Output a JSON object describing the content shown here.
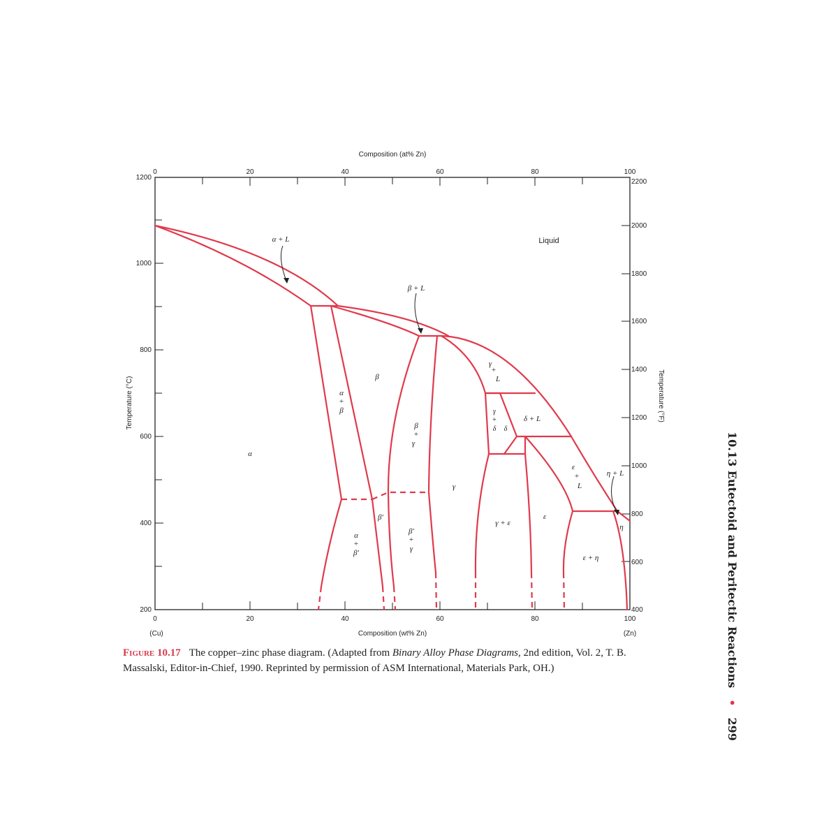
{
  "figure": {
    "label_prefix": "Figure",
    "label_number": "10.17",
    "caption_parts": {
      "pre": "The copper–zinc phase diagram. (Adapted from ",
      "source_italic": "Binary Alloy Phase Diagrams,",
      "post": " 2nd edition, Vol. 2, T. B. Massalski, Editor-in-Chief, 1990. Reprinted by permission of ASM International, Materials Park, OH.)"
    }
  },
  "running_head": {
    "section": "10.13 Eutectoid and Peritectic Reactions",
    "bullet": "•",
    "page": "299"
  },
  "axes": {
    "top_title": "Composition (at% Zn)",
    "bottom_title": "Composition (wt% Zn)",
    "left_title": "Temperature (°C)",
    "right_title": "Temperature (°F)",
    "left_end": "(Cu)",
    "right_end": "(Zn)",
    "bottom_ticks": [
      "0",
      "20",
      "40",
      "60",
      "80",
      "100"
    ],
    "top_ticks": [
      "0",
      "20",
      "40",
      "60",
      "80",
      "100"
    ],
    "left_ticks": [
      "200",
      "400",
      "600",
      "800",
      "1000",
      "1200"
    ],
    "right_ticks": [
      "400",
      "600",
      "800",
      "1000",
      "1200",
      "1400",
      "1600",
      "1800",
      "2000",
      "2200"
    ]
  },
  "phase_labels": {
    "alpha_L": "α + L",
    "liquid": "Liquid",
    "beta_L": "β + L",
    "alpha": "α",
    "beta": "β",
    "gamma": "γ",
    "alpha_beta": [
      "α",
      "+",
      "β"
    ],
    "beta_gamma": [
      "β",
      "+",
      "γ"
    ],
    "gamma_L": [
      "γ",
      "+",
      "L"
    ],
    "gamma_delta": [
      "γ",
      "+",
      "δ"
    ],
    "delta": "δ",
    "delta_L": "δ + L",
    "epsilon_L": [
      "ε",
      "+",
      "L"
    ],
    "eta_L": "η + L",
    "epsilon": "ε",
    "gamma_epsilon": "γ + ε",
    "eta": "η",
    "epsilon_eta": "ε + η",
    "betap": "β′",
    "alpha_betap": [
      "α",
      "+",
      "β′"
    ],
    "betap_gamma": [
      "β′",
      "+",
      "γ"
    ]
  },
  "colors": {
    "phase_line": "#e03a4c",
    "axis": "#222222"
  }
}
